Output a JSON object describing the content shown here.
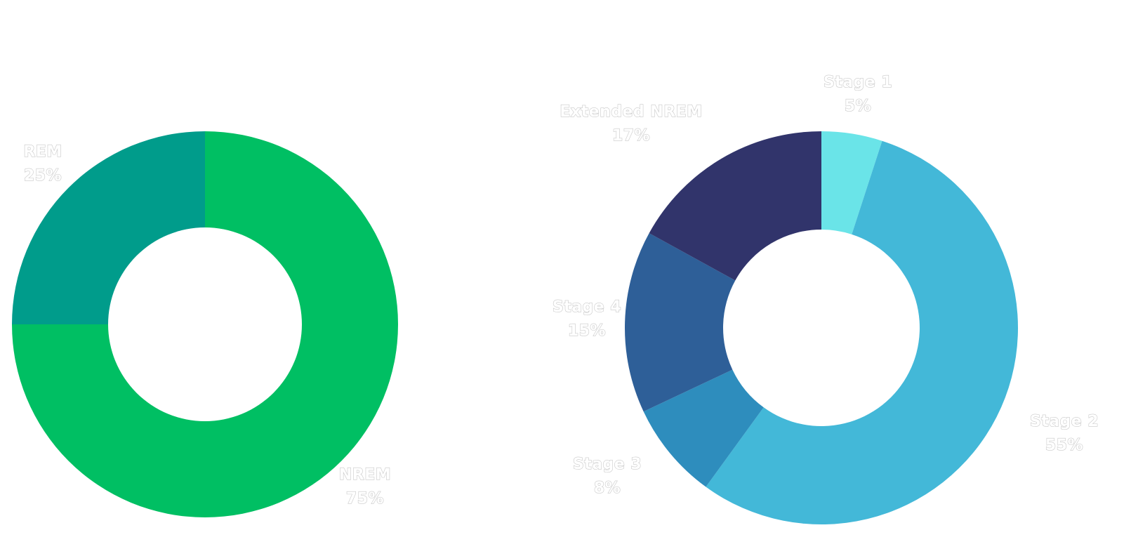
{
  "chart_data": [
    {
      "type": "pie",
      "categories": [
        "NREM",
        "REM"
      ],
      "values": [
        75,
        25
      ],
      "value_labels": [
        "75%",
        "25%"
      ],
      "colors": [
        "#00bf63",
        "#009c8b"
      ],
      "donut": true
    },
    {
      "type": "pie",
      "categories": [
        "Stage 1",
        "Stage 2",
        "Stage 3",
        "Stage 4",
        "Extended NREM"
      ],
      "values": [
        5,
        55,
        8,
        15,
        17
      ],
      "value_labels": [
        "5%",
        "55%",
        "8%",
        "15%",
        "17%"
      ],
      "colors": [
        "#6ae4e8",
        "#43b8d8",
        "#2e8dbd",
        "#2e5f98",
        "#31346b"
      ],
      "donut": true
    }
  ]
}
